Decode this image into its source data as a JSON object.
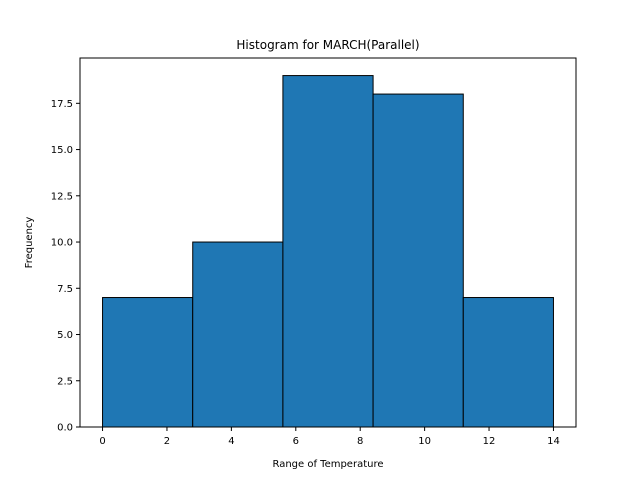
{
  "chart_data": {
    "type": "bar",
    "title": "Histogram for MARCH(Parallel)",
    "xlabel": "Range of Temperature",
    "ylabel": "Frequency",
    "bins": [
      {
        "start": 0.0,
        "end": 2.8,
        "count": 7
      },
      {
        "start": 2.8,
        "end": 5.6,
        "count": 10
      },
      {
        "start": 5.6,
        "end": 8.4,
        "count": 19
      },
      {
        "start": 8.4,
        "end": 11.2,
        "count": 18
      },
      {
        "start": 11.2,
        "end": 14.0,
        "count": 7
      }
    ],
    "xlim": [
      -0.7,
      14.7
    ],
    "ylim": [
      0,
      19.95
    ],
    "xticks": [
      0,
      2,
      4,
      6,
      8,
      10,
      12,
      14
    ],
    "xtick_labels": [
      "0",
      "2",
      "4",
      "6",
      "8",
      "10",
      "12",
      "14"
    ],
    "yticks": [
      0,
      2.5,
      5,
      7.5,
      10,
      12.5,
      15,
      17.5
    ],
    "ytick_labels": [
      "0.0",
      "2.5",
      "5.0",
      "7.5",
      "10.0",
      "12.5",
      "15.0",
      "17.5"
    ],
    "grid": false,
    "colors": {
      "bar_fill": "#1f77b4",
      "bar_edge": "#000000"
    }
  }
}
